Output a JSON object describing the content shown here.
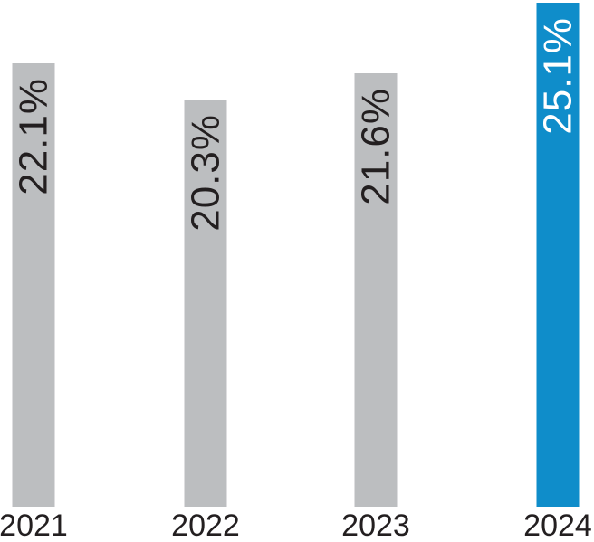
{
  "colors": {
    "bar_default": "#bcbec0",
    "bar_highlight": "#0f8dca",
    "text_dark": "#231f20",
    "text_light": "#ffffff"
  },
  "chart_data": {
    "type": "bar",
    "title": "",
    "xlabel": "",
    "ylabel": "",
    "categories": [
      "2021",
      "2022",
      "2023",
      "2024"
    ],
    "values": [
      22.1,
      20.3,
      21.6,
      25.1
    ],
    "data_labels": [
      "22.1%",
      "20.3%",
      "21.6%",
      "25.1%"
    ],
    "value_suffix": "%",
    "ylim": [
      0,
      25.1
    ],
    "highlight_index": 3,
    "grid": "off",
    "axes_visible": false,
    "legend": "none",
    "data_label_orientation": "rotated-90-bottom-to-top-inside-bar-top",
    "category_label_position": "below-bar"
  }
}
